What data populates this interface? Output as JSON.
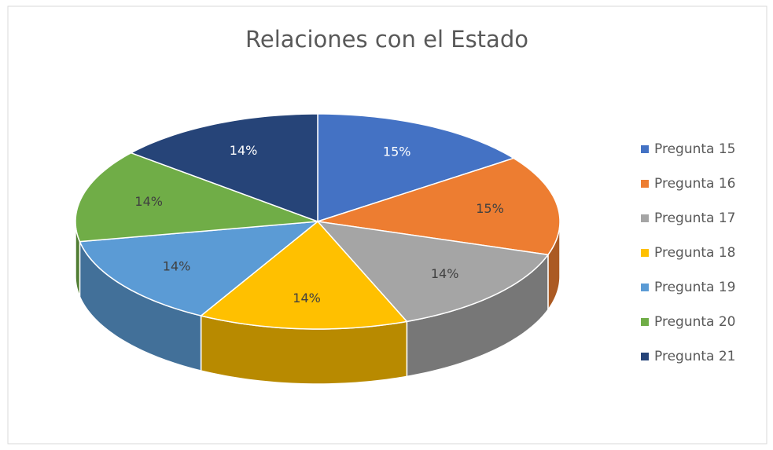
{
  "chart_data": {
    "type": "pie3d",
    "title": "Relaciones con el Estado",
    "categories": [
      "Pregunta 15",
      "Pregunta 16",
      "Pregunta 17",
      "Pregunta 18",
      "Pregunta 19",
      "Pregunta 20",
      "Pregunta 21"
    ],
    "values": [
      15,
      15,
      14,
      14,
      14,
      14,
      14
    ],
    "value_labels": [
      "15%",
      "15%",
      "14%",
      "14%",
      "14%",
      "14%",
      "14%"
    ],
    "colors": [
      "#4472c4",
      "#ed7d31",
      "#a5a5a5",
      "#ffc000",
      "#5b9bd5",
      "#70ad47",
      "#264478"
    ],
    "legend": "right"
  }
}
